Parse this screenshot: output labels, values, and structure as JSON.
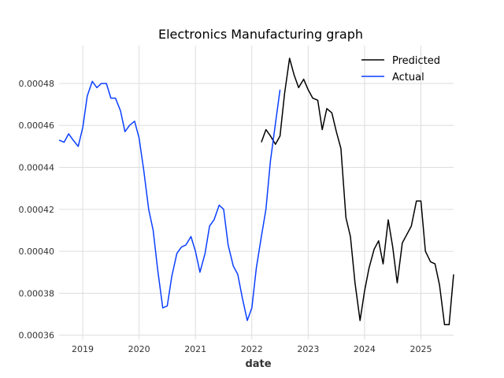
{
  "chart_data": {
    "type": "line",
    "title": "Electronics Manufacturing graph",
    "xlabel": "date",
    "ylabel": "",
    "xlim": [
      2018.58,
      2025.58
    ],
    "ylim": [
      0.000358,
      0.000498
    ],
    "x_ticks": [
      2019,
      2020,
      2021,
      2022,
      2023,
      2024,
      2025
    ],
    "x_tick_labels": [
      "2019",
      "2020",
      "2021",
      "2022",
      "2023",
      "2024",
      "2025"
    ],
    "y_ticks": [
      0.00036,
      0.00038,
      0.0004,
      0.00042,
      0.00044,
      0.00046,
      0.00048
    ],
    "y_tick_labels": [
      "0.00036",
      "0.00038",
      "0.00040",
      "0.00042",
      "0.00044",
      "0.00046",
      "0.00048"
    ],
    "grid": true,
    "legend_position": "top-right",
    "series": [
      {
        "name": "Predicted",
        "color": "#000000",
        "x": [
          2022.17,
          2022.25,
          2022.33,
          2022.42,
          2022.5,
          2022.58,
          2022.67,
          2022.75,
          2022.83,
          2022.92,
          2023.0,
          2023.08,
          2023.17,
          2023.25,
          2023.33,
          2023.42,
          2023.5,
          2023.58,
          2023.67,
          2023.75,
          2023.83,
          2023.92,
          2024.0,
          2024.08,
          2024.17,
          2024.25,
          2024.33,
          2024.42,
          2024.5,
          2024.58,
          2024.67,
          2024.75,
          2024.83,
          2024.92,
          2025.0,
          2025.08,
          2025.17,
          2025.25,
          2025.33,
          2025.42,
          2025.5,
          2025.58
        ],
        "y": [
          0.000452,
          0.000458,
          0.000455,
          0.000451,
          0.000455,
          0.000475,
          0.000492,
          0.000484,
          0.000478,
          0.000482,
          0.000477,
          0.000473,
          0.000472,
          0.000458,
          0.000468,
          0.000466,
          0.000457,
          0.000449,
          0.000416,
          0.000407,
          0.000385,
          0.000367,
          0.000381,
          0.000392,
          0.000401,
          0.000405,
          0.000394,
          0.000415,
          0.000402,
          0.000385,
          0.000404,
          0.000408,
          0.000412,
          0.000424,
          0.000424,
          0.0004,
          0.000395,
          0.000394,
          0.000384,
          0.000365,
          0.000365,
          0.000389
        ]
      },
      {
        "name": "Actual",
        "color": "#0a3fff",
        "x": [
          2018.58,
          2018.67,
          2018.75,
          2018.83,
          2018.92,
          2019.0,
          2019.08,
          2019.17,
          2019.25,
          2019.33,
          2019.42,
          2019.5,
          2019.58,
          2019.67,
          2019.75,
          2019.83,
          2019.92,
          2020.0,
          2020.08,
          2020.17,
          2020.25,
          2020.33,
          2020.42,
          2020.5,
          2020.58,
          2020.67,
          2020.75,
          2020.83,
          2020.92,
          2021.0,
          2021.08,
          2021.17,
          2021.25,
          2021.33,
          2021.42,
          2021.5,
          2021.58,
          2021.67,
          2021.75,
          2021.83,
          2021.92,
          2022.0,
          2022.08,
          2022.17,
          2022.25,
          2022.33,
          2022.42,
          2022.5
        ],
        "y": [
          0.000453,
          0.000452,
          0.000456,
          0.000453,
          0.00045,
          0.000459,
          0.000474,
          0.000481,
          0.000478,
          0.00048,
          0.00048,
          0.000473,
          0.000473,
          0.000467,
          0.000457,
          0.00046,
          0.000462,
          0.000454,
          0.000439,
          0.00042,
          0.00041,
          0.000391,
          0.000373,
          0.000374,
          0.000388,
          0.000399,
          0.000402,
          0.000403,
          0.000407,
          0.0004,
          0.00039,
          0.000399,
          0.000412,
          0.000415,
          0.000422,
          0.00042,
          0.000403,
          0.000393,
          0.000389,
          0.000378,
          0.000367,
          0.000373,
          0.000392,
          0.000407,
          0.00042,
          0.000443,
          0.000461,
          0.000477
        ]
      }
    ]
  }
}
